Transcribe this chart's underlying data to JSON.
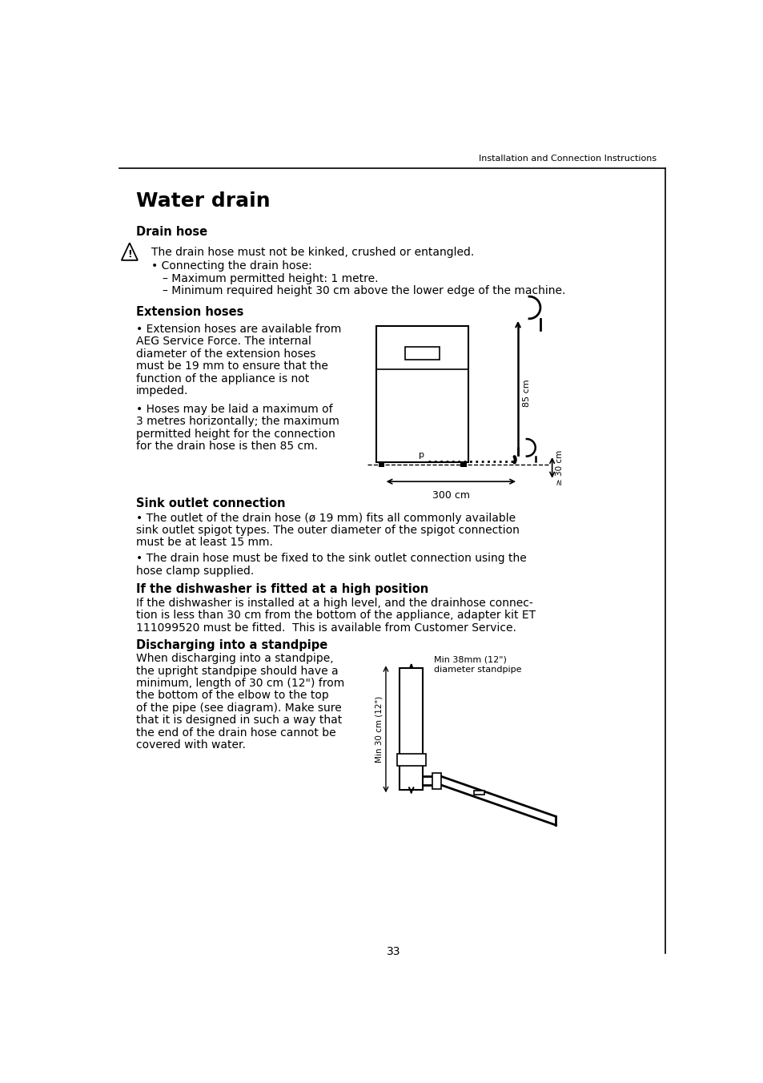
{
  "page_header": "Installation and Connection Instructions",
  "page_number": "33",
  "title": "Water drain",
  "section1_heading": "Drain hose",
  "warning_text": "The drain hose must not be kinked, crushed or entangled.",
  "bullet1_head": "• Connecting the drain hose:",
  "bullet1_sub1": "– Maximum permitted height: 1 metre.",
  "bullet1_sub2": "– Minimum required height 30 cm above the lower edge of the machine.",
  "section2_heading": "Extension hoses",
  "ext_bullet1_line1": "• Extension hoses are available from",
  "ext_bullet1_line2": "AEG Service Force. The internal",
  "ext_bullet1_line3": "diameter of the extension hoses",
  "ext_bullet1_line4": "must be 19 mm to ensure that the",
  "ext_bullet1_line5": "function of the appliance is not",
  "ext_bullet1_line6": "impeded.",
  "ext_bullet2_line1": "• Hoses may be laid a maximum of",
  "ext_bullet2_line2": "3 metres horizontally; the maximum",
  "ext_bullet2_line3": "permitted height for the connection",
  "ext_bullet2_line4": "for the drain hose is then 85 cm.",
  "section3_heading": "Sink outlet connection",
  "sink_bullet1_line1": "• The outlet of the drain hose (ø 19 mm) fits all commonly available",
  "sink_bullet1_line2": "sink outlet spigot types. The outer diameter of the spigot connection",
  "sink_bullet1_line3": "must be at least 15 mm.",
  "sink_bullet2_line1": "• The drain hose must be fixed to the sink outlet connection using the",
  "sink_bullet2_line2": "hose clamp supplied.",
  "section4_heading": "If the dishwasher is fitted at a high position",
  "high_pos_line1": "If the dishwasher is installed at a high level, and the drainhose connec-",
  "high_pos_line2": "tion is less than 30 cm from the bottom of the appliance, adapter kit ET",
  "high_pos_line3": "111099520 must be fitted.  This is available from Customer Service.",
  "section5_heading": "Discharging into a standpipe",
  "standpipe_line1": "When discharging into a standpipe,",
  "standpipe_line2": "the upright standpipe should have a",
  "standpipe_line3": "minimum, length of 30 cm (12\") from",
  "standpipe_line4": "the bottom of the elbow to the top",
  "standpipe_line5": "of the pipe (see diagram). Make sure",
  "standpipe_line6": "that it is designed in such a way that",
  "standpipe_line7": "the end of the drain hose cannot be",
  "standpipe_line8": "covered with water.",
  "diag1_label_85cm": "85 cm",
  "diag1_label_30cm": "≥ 30 cm",
  "diag1_label_300cm": "300 cm",
  "diag2_label_min38": "Min 38mm (12\")",
  "diag2_label_standpipe": "diameter standpipe",
  "diag2_label_30cm": "Min 30 cm (12\")",
  "bg_color": "#ffffff",
  "text_color": "#000000"
}
